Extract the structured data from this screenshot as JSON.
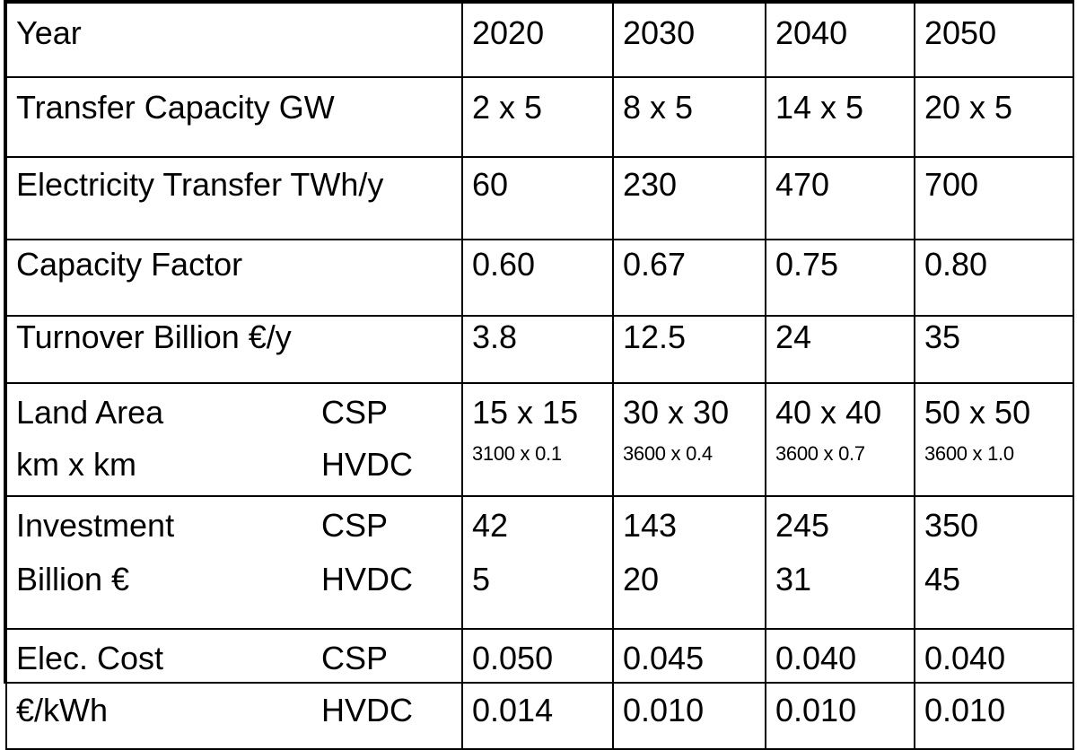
{
  "table": {
    "header": {
      "label": "Year",
      "years": [
        "2020",
        "2030",
        "2040",
        "2050"
      ]
    },
    "rows": [
      {
        "label": "Transfer Capacity GW",
        "values": [
          "2 x 5",
          "8 x 5",
          "14 x 5",
          "20 x 5"
        ]
      },
      {
        "label": "Electricity Transfer TWh/y",
        "values": [
          "60",
          "230",
          "470",
          "700"
        ]
      },
      {
        "label": "Capacity Factor",
        "values": [
          "0.60",
          "0.67",
          "0.75",
          "0.80"
        ]
      },
      {
        "label": "Turnover Billion €/y",
        "values": [
          "3.8",
          "12.5",
          "24",
          "35"
        ]
      }
    ],
    "land_area": {
      "label_line1": "Land Area",
      "label_line2": "km x km",
      "sub1": "CSP",
      "sub2": "HVDC",
      "csp": [
        "15 x 15",
        "30 x 30",
        "40 x 40",
        "50 x 50"
      ],
      "hvdc": [
        "3100 x 0.1",
        "3600 x 0.4",
        "3600 x 0.7",
        "3600 x 1.0"
      ]
    },
    "investment": {
      "label_line1": "Investment",
      "label_line2": "Billion €",
      "sub1": "CSP",
      "sub2": "HVDC",
      "csp": [
        "42",
        "143",
        "245",
        "350"
      ],
      "hvdc": [
        "5",
        "20",
        "31",
        "45"
      ]
    },
    "elec_cost": {
      "label_line1": "Elec. Cost",
      "label_line2": "€/kWh",
      "sub1": "CSP",
      "sub2": "HVDC",
      "csp": [
        "0.050",
        "0.045",
        "0.040",
        "0.040"
      ],
      "hvdc": [
        "0.014",
        "0.010",
        "0.010",
        "0.010"
      ]
    }
  }
}
